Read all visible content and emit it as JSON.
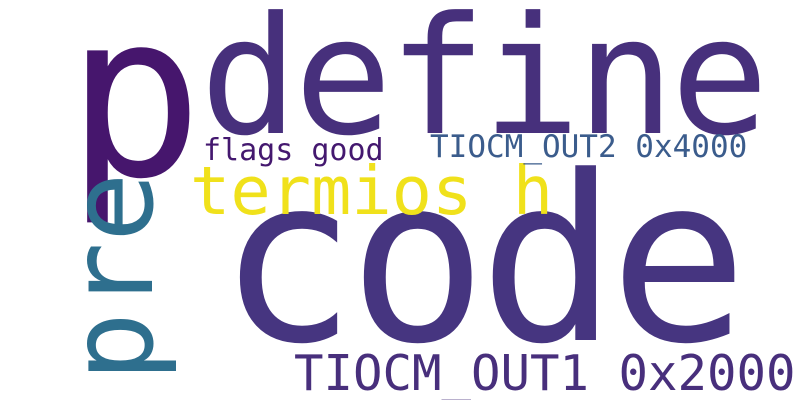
{
  "words": {
    "p": "p",
    "define": "define",
    "pre": "pre",
    "termios": "termios h",
    "code": "code",
    "flags": "flags good",
    "out2": "TIOCM_OUT2 0x4000",
    "out1": "TIOCM_OUT1 0x2000"
  },
  "colors": {
    "background": "#ffffff",
    "dark_purple": "#46166d",
    "purple": "#47307c",
    "teal": "#2e6f8e",
    "yellow": "#f0e11b",
    "blue": "#3b5c8c"
  }
}
